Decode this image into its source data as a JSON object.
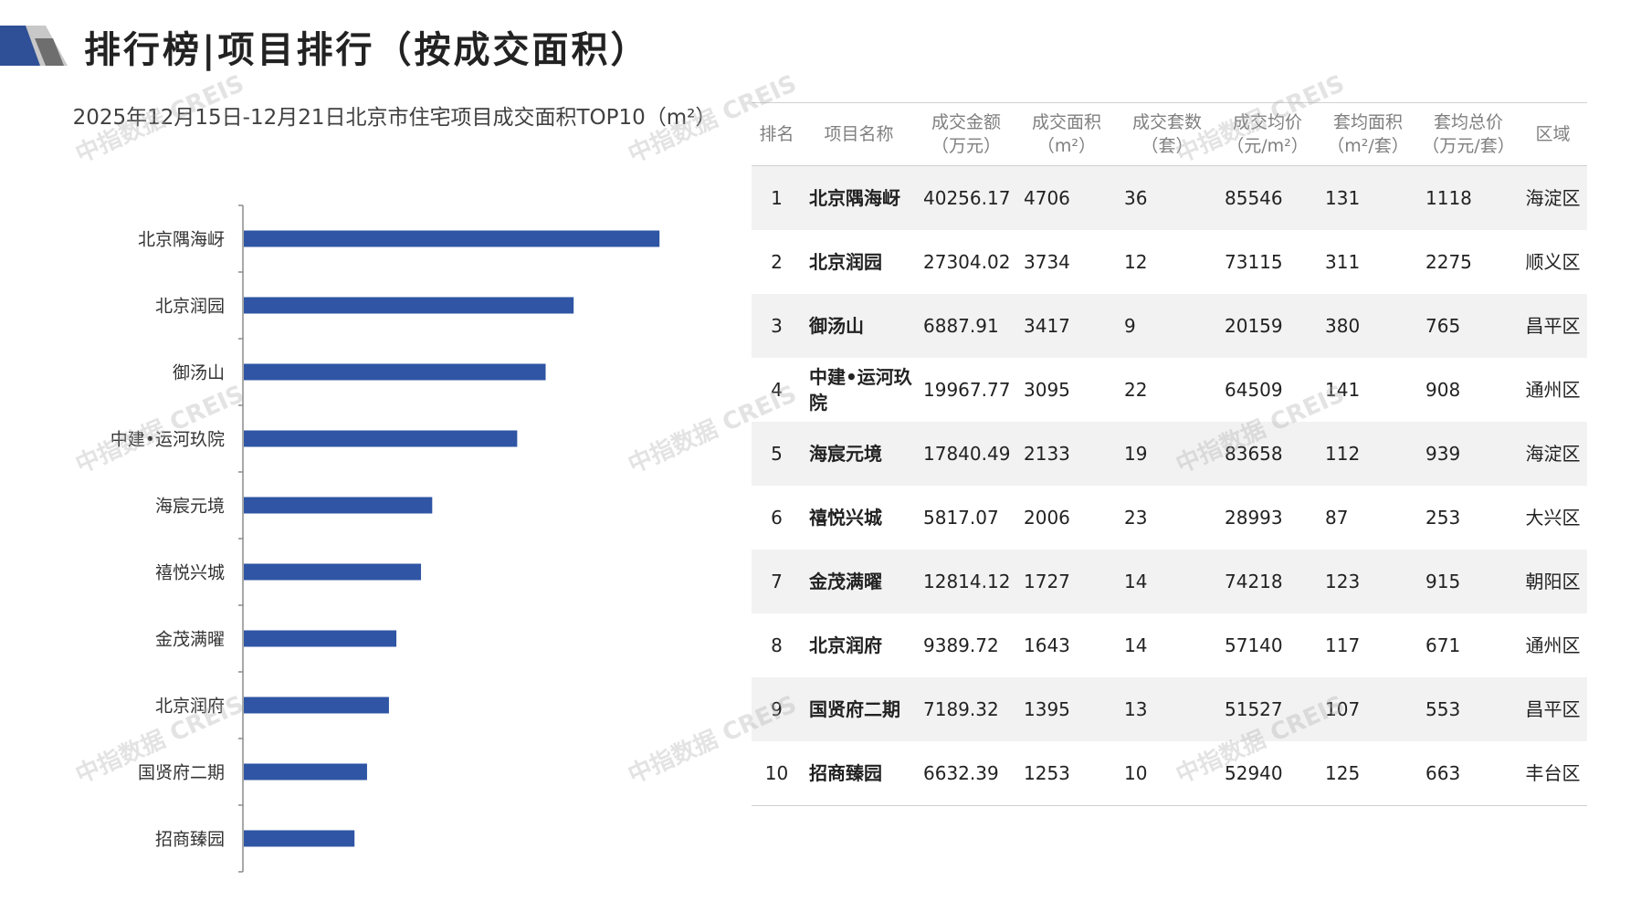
{
  "header": {
    "title": "排行榜|项目排行（按成交面积）"
  },
  "chart_data": {
    "type": "bar",
    "orientation": "horizontal",
    "title": "2025年12月15日-12月21日北京市住宅项目成交面积TOP10（m²）",
    "categories": [
      "北京隅海岈",
      "北京润园",
      "御汤山",
      "中建•运河玖院",
      "海宸元境",
      "禧悦兴城",
      "金茂满曜",
      "北京润府",
      "国贤府二期",
      "招商臻园"
    ],
    "values": [
      4706,
      3734,
      3417,
      3095,
      2133,
      2006,
      1727,
      1643,
      1395,
      1253
    ],
    "xlim": [
      0,
      5500
    ],
    "bar_color": "#2f55a4",
    "grid": false,
    "legend": "none"
  },
  "table": {
    "headers": [
      "排名",
      "项目名称",
      "成交金额\n（万元）",
      "成交面积\n（m²）",
      "成交套数\n（套）",
      "成交均价\n（元/m²）",
      "套均面积\n（m²/套）",
      "套均总价\n（万元/套）",
      "区域"
    ],
    "rows": [
      [
        "1",
        "北京隅海岈",
        "40256.17",
        "4706",
        "36",
        "85546",
        "131",
        "1118",
        "海淀区"
      ],
      [
        "2",
        "北京润园",
        "27304.02",
        "3734",
        "12",
        "73115",
        "311",
        "2275",
        "顺义区"
      ],
      [
        "3",
        "御汤山",
        "6887.91",
        "3417",
        "9",
        "20159",
        "380",
        "765",
        "昌平区"
      ],
      [
        "4",
        "中建•运河玖院",
        "19967.77",
        "3095",
        "22",
        "64509",
        "141",
        "908",
        "通州区"
      ],
      [
        "5",
        "海宸元境",
        "17840.49",
        "2133",
        "19",
        "83658",
        "112",
        "939",
        "海淀区"
      ],
      [
        "6",
        "禧悦兴城",
        "5817.07",
        "2006",
        "23",
        "28993",
        "87",
        "253",
        "大兴区"
      ],
      [
        "7",
        "金茂满曜",
        "12814.12",
        "1727",
        "14",
        "74218",
        "123",
        "915",
        "朝阳区"
      ],
      [
        "8",
        "北京润府",
        "9389.72",
        "1643",
        "14",
        "57140",
        "117",
        "671",
        "通州区"
      ],
      [
        "9",
        "国贤府二期",
        "7189.32",
        "1395",
        "13",
        "51527",
        "107",
        "553",
        "昌平区"
      ],
      [
        "10",
        "招商臻园",
        "6632.39",
        "1253",
        "10",
        "52940",
        "125",
        "663",
        "丰台区"
      ]
    ]
  },
  "watermark": "中指数据 CREIS",
  "colors": {
    "accent": "#2f55a4",
    "logo_dark": "#2f4f96",
    "logo_gray": "#9c9c9c"
  }
}
